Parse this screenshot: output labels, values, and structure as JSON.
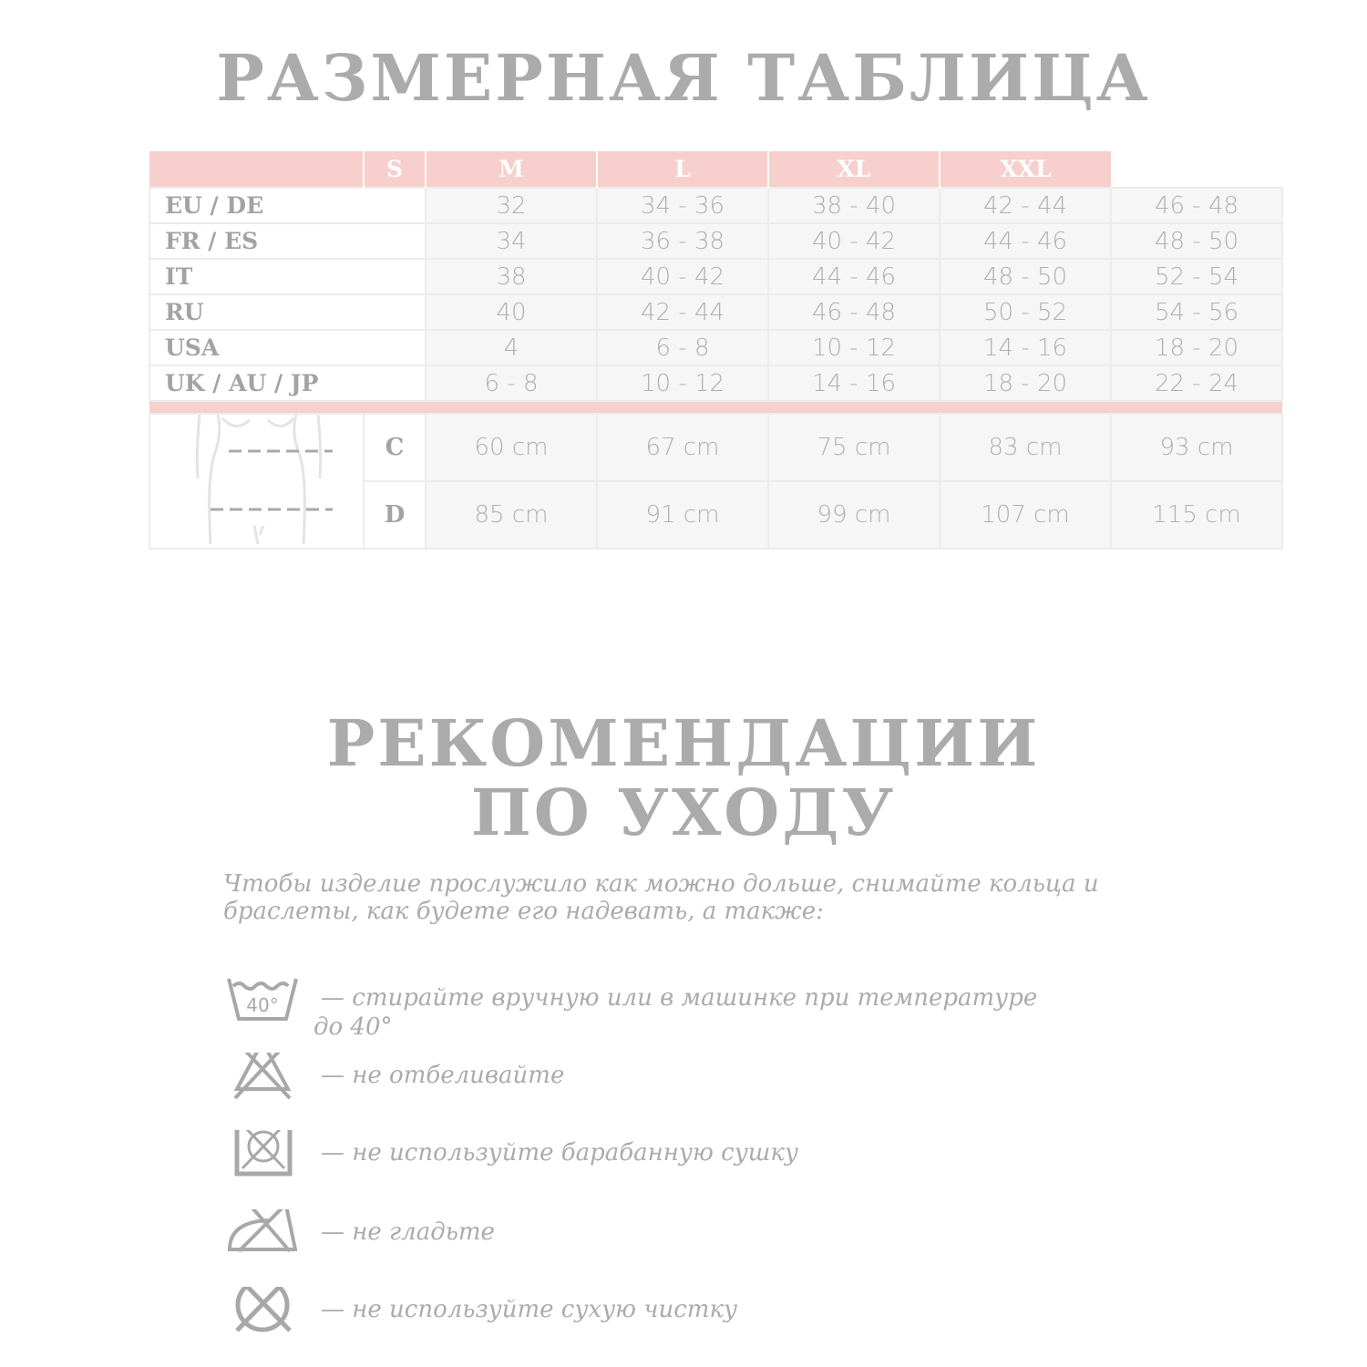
{
  "size_table": {
    "title": "РАЗМЕРНАЯ ТАБЛИЦА",
    "sizes": [
      "S",
      "M",
      "L",
      "XL",
      "XXL"
    ],
    "rows": [
      {
        "label": "EU / DE",
        "values": [
          "32",
          "34 - 36",
          "38 - 40",
          "42 - 44",
          "46 - 48"
        ]
      },
      {
        "label": "FR / ES",
        "values": [
          "34",
          "36 - 38",
          "40 - 42",
          "44 - 46",
          "48 - 50"
        ]
      },
      {
        "label": "IT",
        "values": [
          "38",
          "40 - 42",
          "44 - 46",
          "48 - 50",
          "52 - 54"
        ]
      },
      {
        "label": "RU",
        "values": [
          "40",
          "42 - 44",
          "46 - 48",
          "50 - 52",
          "54 - 56"
        ]
      },
      {
        "label": "USA",
        "values": [
          "4",
          "6 - 8",
          "10 - 12",
          "14 - 16",
          "18 - 20"
        ]
      },
      {
        "label": "UK / AU / JP",
        "values": [
          "6 - 8",
          "10 - 12",
          "14 - 16",
          "18 - 20",
          "22 - 24"
        ]
      }
    ],
    "measurements": [
      {
        "label": "C",
        "values": [
          "60 cm",
          "67 cm",
          "75 cm",
          "83 cm",
          "93 cm"
        ]
      },
      {
        "label": "D",
        "values": [
          "85 cm",
          "91 cm",
          "99 cm",
          "107 cm",
          "115 cm"
        ]
      }
    ],
    "accent_color": "#f7cfcd"
  },
  "care": {
    "title_line1": "РЕКОМЕНДАЦИИ",
    "title_line2": "ПО УХОДУ",
    "intro": "Чтобы изделие прослужило как можно дольше, снимайте кольца и браслеты, как будете его надевать, а также:",
    "items": [
      {
        "icon": "wash-40-icon",
        "text": "—   стирайте вручную или в машинке при температуре",
        "text2": "до 40°",
        "icon_label": "40°"
      },
      {
        "icon": "no-bleach-icon",
        "text": "—   не отбеливайте"
      },
      {
        "icon": "no-tumble-dry-icon",
        "text": "—   не используйте барабанную сушку"
      },
      {
        "icon": "no-iron-icon",
        "text": "—   не гладьте"
      },
      {
        "icon": "no-dry-clean-icon",
        "text": "—   не используйте сухую чистку"
      }
    ]
  }
}
